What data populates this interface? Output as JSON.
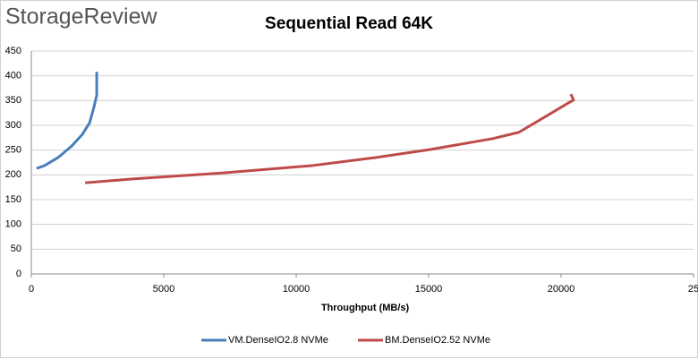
{
  "logo": "StorageReview",
  "chart_data": {
    "type": "line",
    "title": "Sequential Read 64K",
    "x_label": "Throughput (MB/s)",
    "xlim": [
      0,
      25000
    ],
    "xticks": [
      0,
      5000,
      10000,
      15000,
      20000,
      {
        "value": 25000,
        "label": "25"
      }
    ],
    "ylim": [
      0,
      450
    ],
    "yticks": [
      0,
      50,
      100,
      150,
      200,
      250,
      300,
      350,
      400,
      450
    ],
    "grid": true,
    "legend": "bottom",
    "series": [
      {
        "name": "VM.DenseIO2.8 NVMe",
        "color": "#4a7ebb",
        "x": [
          200,
          510,
          1010,
          1520,
          1930,
          2200,
          2360,
          2470,
          2470,
          2470
        ],
        "values": [
          213,
          219,
          235,
          258,
          282,
          305,
          336,
          361,
          381,
          408
        ]
      },
      {
        "name": "BM.DenseIO2.52 NVMe",
        "color": "#be4b48",
        "x": [
          2030,
          3890,
          7260,
          10640,
          12990,
          15030,
          17400,
          18410,
          19420,
          20270,
          20470,
          20370
        ],
        "values": [
          184,
          192,
          204,
          219,
          235,
          251,
          273,
          286,
          318,
          345,
          351,
          363
        ]
      }
    ]
  }
}
